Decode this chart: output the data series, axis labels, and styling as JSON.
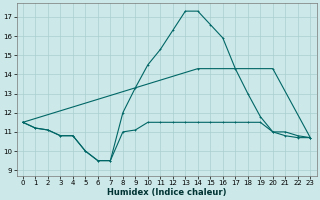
{
  "xlabel": "Humidex (Indice chaleur)",
  "xlim": [
    -0.5,
    23.5
  ],
  "ylim": [
    8.7,
    17.7
  ],
  "yticks": [
    9,
    10,
    11,
    12,
    13,
    14,
    15,
    16,
    17
  ],
  "xticks": [
    0,
    1,
    2,
    3,
    4,
    5,
    6,
    7,
    8,
    9,
    10,
    11,
    12,
    13,
    14,
    15,
    16,
    17,
    18,
    19,
    20,
    21,
    22,
    23
  ],
  "bg_color": "#cde8e8",
  "grid_color": "#aacfcf",
  "line_color": "#006666",
  "line1_x": [
    0,
    1,
    2,
    3,
    4,
    5,
    6,
    7,
    8,
    9,
    10,
    11,
    12,
    13,
    14,
    15,
    16,
    17,
    18,
    19,
    20,
    21,
    22,
    23
  ],
  "line1_y": [
    11.5,
    11.2,
    11.1,
    10.8,
    10.8,
    10.0,
    9.5,
    9.5,
    11.0,
    11.1,
    11.5,
    11.5,
    11.5,
    11.5,
    11.5,
    11.5,
    11.5,
    11.5,
    11.5,
    11.5,
    11.0,
    11.0,
    10.8,
    10.7
  ],
  "line2_x": [
    0,
    1,
    2,
    3,
    4,
    5,
    6,
    7,
    8,
    9,
    10,
    11,
    12,
    13,
    14,
    15,
    16,
    17,
    18,
    19,
    20,
    21,
    22,
    23
  ],
  "line2_y": [
    11.5,
    11.2,
    11.1,
    10.8,
    10.8,
    10.0,
    9.5,
    9.5,
    12.0,
    13.3,
    14.5,
    15.3,
    16.3,
    17.3,
    17.3,
    16.6,
    15.9,
    14.3,
    13.0,
    11.8,
    11.0,
    10.8,
    10.7,
    10.7
  ],
  "line3_x": [
    0,
    14,
    20,
    23
  ],
  "line3_y": [
    11.5,
    14.3,
    14.3,
    10.7
  ]
}
